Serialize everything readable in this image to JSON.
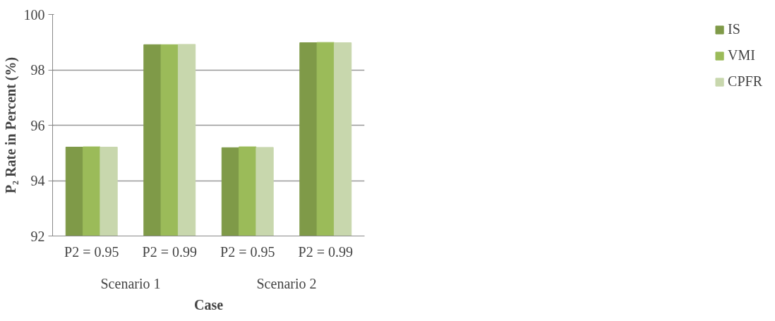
{
  "chart_data": {
    "type": "bar",
    "ylabel": "P₂ Rate in Percent (%)",
    "xlabel": "Case",
    "categories": [
      "P2 = 0.95",
      "P2 = 0.99",
      "P2 = 0.95",
      "P2 = 0.99"
    ],
    "annotations": [
      "Scenario 1",
      "Scenario 2"
    ],
    "series": [
      {
        "name": "IS",
        "color": "#7f9a48",
        "values": [
          95.21,
          98.91,
          95.19,
          98.98
        ]
      },
      {
        "name": "VMI",
        "color": "#9bbb59",
        "values": [
          95.22,
          98.91,
          95.22,
          98.99
        ]
      },
      {
        "name": "CPFR",
        "color": "#c8d7ad",
        "values": [
          95.21,
          98.92,
          95.2,
          98.98
        ]
      }
    ],
    "ylim": [
      92,
      100
    ],
    "yticks": [
      92,
      94,
      96,
      98,
      100
    ],
    "grid": "y",
    "legend": "right"
  }
}
